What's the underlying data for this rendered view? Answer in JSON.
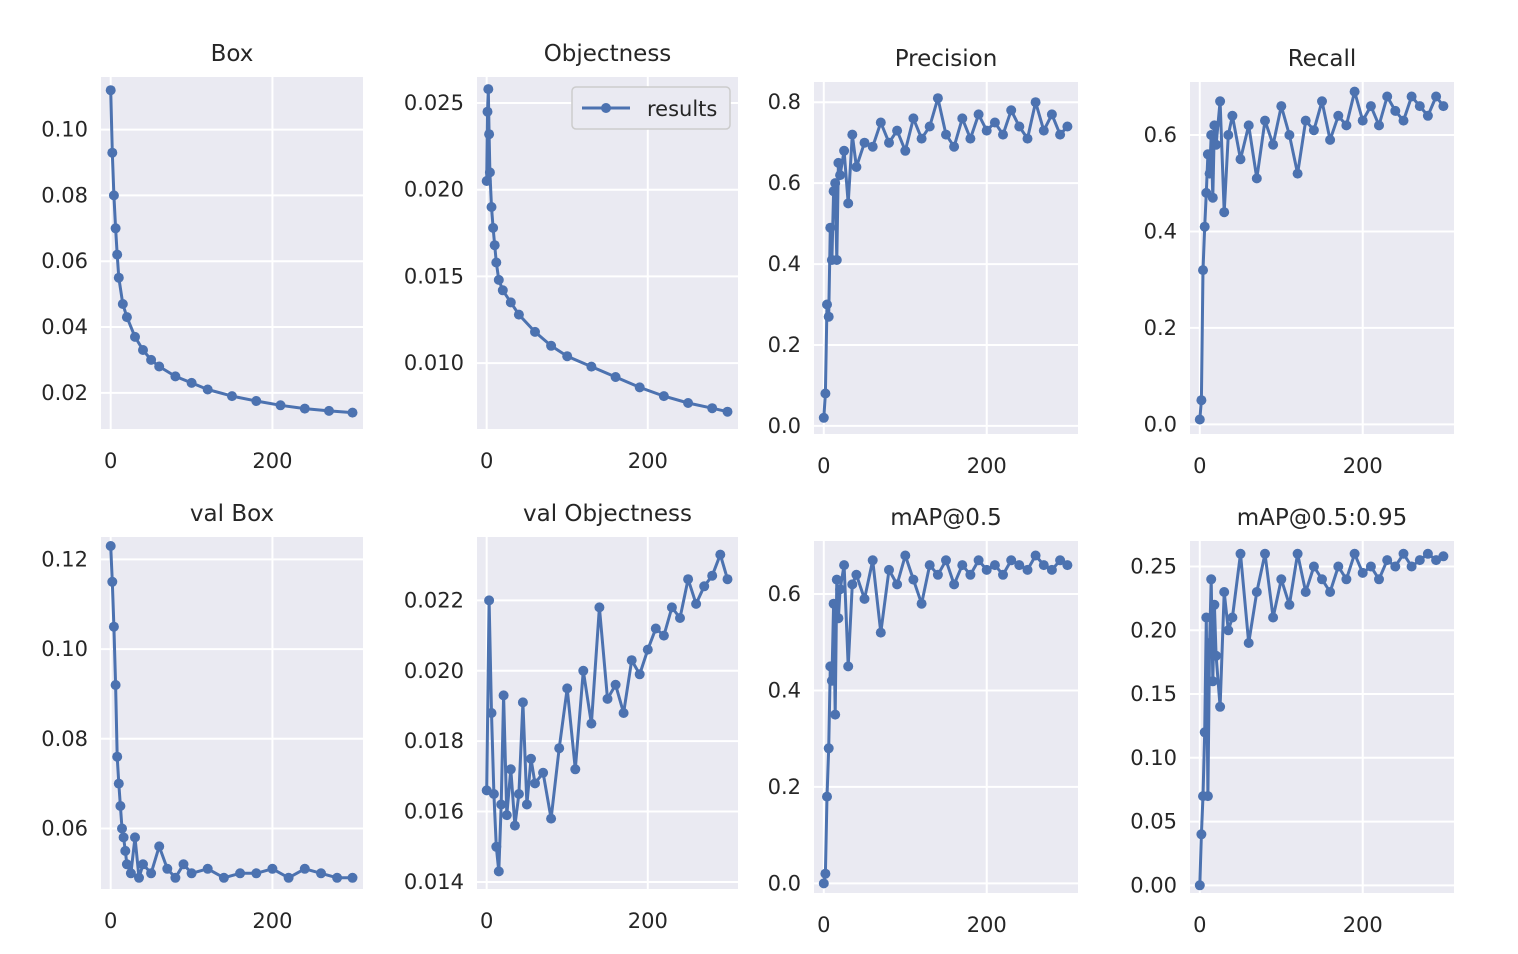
{
  "legend": {
    "label": "results"
  },
  "colors": {
    "series": "#4c72b0",
    "plot_bg": "#eaeaf2",
    "grid": "#ffffff"
  },
  "chart_data": [
    {
      "type": "line",
      "title": "Box",
      "xlabel": "",
      "ylabel": "",
      "xlim": [
        -12,
        312
      ],
      "ylim": [
        0.009,
        0.116
      ],
      "xticks": [
        0,
        200
      ],
      "xtick_labels": [
        "0",
        "200"
      ],
      "yticks": [
        0.02,
        0.04,
        0.06,
        0.08,
        0.1
      ],
      "ytick_labels": [
        "0.02",
        "0.04",
        "0.06",
        "0.08",
        "0.10"
      ],
      "x": [
        0,
        2,
        4,
        6,
        8,
        10,
        15,
        20,
        30,
        40,
        50,
        60,
        80,
        100,
        120,
        150,
        180,
        210,
        240,
        270,
        299
      ],
      "values": [
        0.112,
        0.093,
        0.08,
        0.07,
        0.062,
        0.055,
        0.047,
        0.043,
        0.037,
        0.033,
        0.03,
        0.028,
        0.025,
        0.023,
        0.021,
        0.019,
        0.0175,
        0.0162,
        0.0152,
        0.0145,
        0.014
      ]
    },
    {
      "type": "line",
      "title": "Objectness",
      "xlabel": "",
      "ylabel": "",
      "xlim": [
        -12,
        312
      ],
      "ylim": [
        0.0062,
        0.0265
      ],
      "xticks": [
        0,
        200
      ],
      "xtick_labels": [
        "0",
        "200"
      ],
      "yticks": [
        0.01,
        0.015,
        0.02,
        0.025
      ],
      "ytick_labels": [
        "0.010",
        "0.015",
        "0.020",
        "0.025"
      ],
      "x": [
        0,
        1,
        2,
        3,
        4,
        6,
        8,
        10,
        12,
        15,
        20,
        30,
        40,
        60,
        80,
        100,
        130,
        160,
        190,
        220,
        250,
        280,
        299
      ],
      "values": [
        0.0205,
        0.0245,
        0.0258,
        0.0232,
        0.021,
        0.019,
        0.0178,
        0.0168,
        0.0158,
        0.0148,
        0.0142,
        0.0135,
        0.0128,
        0.0118,
        0.011,
        0.0104,
        0.0098,
        0.0092,
        0.0086,
        0.0081,
        0.0077,
        0.0074,
        0.0072
      ],
      "legend": "top-right"
    },
    {
      "type": "line",
      "title": "Precision",
      "xlabel": "",
      "ylabel": "",
      "xlim": [
        -12,
        312
      ],
      "ylim": [
        -0.02,
        0.85
      ],
      "xticks": [
        0,
        200
      ],
      "xtick_labels": [
        "0",
        "200"
      ],
      "yticks": [
        0.0,
        0.2,
        0.4,
        0.6,
        0.8
      ],
      "ytick_labels": [
        "0.0",
        "0.2",
        "0.4",
        "0.6",
        "0.8"
      ],
      "x": [
        0,
        2,
        4,
        6,
        8,
        10,
        12,
        14,
        16,
        18,
        20,
        25,
        30,
        35,
        40,
        50,
        60,
        70,
        80,
        90,
        100,
        110,
        120,
        130,
        140,
        150,
        160,
        170,
        180,
        190,
        200,
        210,
        220,
        230,
        240,
        250,
        260,
        270,
        280,
        290,
        299
      ],
      "values": [
        0.02,
        0.08,
        0.3,
        0.27,
        0.49,
        0.41,
        0.58,
        0.6,
        0.41,
        0.65,
        0.62,
        0.68,
        0.55,
        0.72,
        0.64,
        0.7,
        0.69,
        0.75,
        0.7,
        0.73,
        0.68,
        0.76,
        0.71,
        0.74,
        0.81,
        0.72,
        0.69,
        0.76,
        0.71,
        0.77,
        0.73,
        0.75,
        0.72,
        0.78,
        0.74,
        0.71,
        0.8,
        0.73,
        0.77,
        0.72,
        0.74
      ]
    },
    {
      "type": "line",
      "title": "Recall",
      "xlabel": "",
      "ylabel": "",
      "xlim": [
        -12,
        312
      ],
      "ylim": [
        -0.02,
        0.71
      ],
      "xticks": [
        0,
        200
      ],
      "xtick_labels": [
        "0",
        "200"
      ],
      "yticks": [
        0.0,
        0.2,
        0.4,
        0.6
      ],
      "ytick_labels": [
        "0.0",
        "0.2",
        "0.4",
        "0.6"
      ],
      "x": [
        0,
        2,
        4,
        6,
        8,
        10,
        12,
        14,
        16,
        18,
        20,
        25,
        30,
        35,
        40,
        50,
        60,
        70,
        80,
        90,
        100,
        110,
        120,
        130,
        140,
        150,
        160,
        170,
        180,
        190,
        200,
        210,
        220,
        230,
        240,
        250,
        260,
        270,
        280,
        290,
        299
      ],
      "values": [
        0.01,
        0.05,
        0.32,
        0.41,
        0.48,
        0.56,
        0.52,
        0.6,
        0.47,
        0.62,
        0.58,
        0.67,
        0.44,
        0.6,
        0.64,
        0.55,
        0.62,
        0.51,
        0.63,
        0.58,
        0.66,
        0.6,
        0.52,
        0.63,
        0.61,
        0.67,
        0.59,
        0.64,
        0.62,
        0.69,
        0.63,
        0.66,
        0.62,
        0.68,
        0.65,
        0.63,
        0.68,
        0.66,
        0.64,
        0.68,
        0.66
      ]
    },
    {
      "type": "line",
      "title": "val Box",
      "xlabel": "",
      "ylabel": "",
      "xlim": [
        -12,
        312
      ],
      "ylim": [
        0.0465,
        0.125
      ],
      "xticks": [
        0,
        200
      ],
      "xtick_labels": [
        "0",
        "200"
      ],
      "yticks": [
        0.06,
        0.08,
        0.1,
        0.12
      ],
      "ytick_labels": [
        "0.06",
        "0.08",
        "0.10",
        "0.12"
      ],
      "x": [
        0,
        2,
        4,
        6,
        8,
        10,
        12,
        14,
        16,
        18,
        20,
        25,
        30,
        35,
        40,
        50,
        60,
        70,
        80,
        90,
        100,
        120,
        140,
        160,
        180,
        200,
        220,
        240,
        260,
        280,
        299
      ],
      "values": [
        0.123,
        0.115,
        0.105,
        0.092,
        0.076,
        0.07,
        0.065,
        0.06,
        0.058,
        0.055,
        0.052,
        0.05,
        0.058,
        0.049,
        0.052,
        0.05,
        0.056,
        0.051,
        0.049,
        0.052,
        0.05,
        0.051,
        0.049,
        0.05,
        0.05,
        0.051,
        0.049,
        0.051,
        0.05,
        0.049,
        0.049
      ]
    },
    {
      "type": "line",
      "title": "val Objectness",
      "xlabel": "",
      "ylabel": "",
      "xlim": [
        -12,
        312
      ],
      "ylim": [
        0.0138,
        0.0238
      ],
      "xticks": [
        0,
        200
      ],
      "xtick_labels": [
        "0",
        "200"
      ],
      "yticks": [
        0.014,
        0.016,
        0.018,
        0.02,
        0.022
      ],
      "ytick_labels": [
        "0.014",
        "0.016",
        "0.018",
        "0.020",
        "0.022"
      ],
      "x": [
        0,
        3,
        6,
        9,
        12,
        15,
        18,
        21,
        25,
        30,
        35,
        40,
        45,
        50,
        55,
        60,
        70,
        80,
        90,
        100,
        110,
        120,
        130,
        140,
        150,
        160,
        170,
        180,
        190,
        200,
        210,
        220,
        230,
        240,
        250,
        260,
        270,
        280,
        290,
        299
      ],
      "values": [
        0.0166,
        0.022,
        0.0188,
        0.0165,
        0.015,
        0.0143,
        0.0162,
        0.0193,
        0.0159,
        0.0172,
        0.0156,
        0.0165,
        0.0191,
        0.0162,
        0.0175,
        0.0168,
        0.0171,
        0.0158,
        0.0178,
        0.0195,
        0.0172,
        0.02,
        0.0185,
        0.0218,
        0.0192,
        0.0196,
        0.0188,
        0.0203,
        0.0199,
        0.0206,
        0.0212,
        0.021,
        0.0218,
        0.0215,
        0.0226,
        0.0219,
        0.0224,
        0.0227,
        0.0233,
        0.0226
      ]
    },
    {
      "type": "line",
      "title": "mAP@0.5",
      "xlabel": "",
      "ylabel": "",
      "xlim": [
        -12,
        312
      ],
      "ylim": [
        -0.02,
        0.71
      ],
      "xticks": [
        0,
        200
      ],
      "xtick_labels": [
        "0",
        "200"
      ],
      "yticks": [
        0.0,
        0.2,
        0.4,
        0.6
      ],
      "ytick_labels": [
        "0.0",
        "0.2",
        "0.4",
        "0.6"
      ],
      "x": [
        0,
        2,
        4,
        6,
        8,
        10,
        12,
        14,
        16,
        18,
        20,
        25,
        30,
        35,
        40,
        50,
        60,
        70,
        80,
        90,
        100,
        110,
        120,
        130,
        140,
        150,
        160,
        170,
        180,
        190,
        200,
        210,
        220,
        230,
        240,
        250,
        260,
        270,
        280,
        290,
        299
      ],
      "values": [
        0.0,
        0.02,
        0.18,
        0.28,
        0.45,
        0.42,
        0.58,
        0.35,
        0.63,
        0.55,
        0.61,
        0.66,
        0.45,
        0.62,
        0.64,
        0.59,
        0.67,
        0.52,
        0.65,
        0.62,
        0.68,
        0.63,
        0.58,
        0.66,
        0.64,
        0.67,
        0.62,
        0.66,
        0.64,
        0.67,
        0.65,
        0.66,
        0.64,
        0.67,
        0.66,
        0.65,
        0.68,
        0.66,
        0.65,
        0.67,
        0.66
      ]
    },
    {
      "type": "line",
      "title": "mAP@0.5:0.95",
      "xlabel": "",
      "ylabel": "",
      "xlim": [
        -12,
        312
      ],
      "ylim": [
        -0.006,
        0.27
      ],
      "xticks": [
        0,
        200
      ],
      "xtick_labels": [
        "0",
        "200"
      ],
      "yticks": [
        0.0,
        0.05,
        0.1,
        0.15,
        0.2,
        0.25
      ],
      "ytick_labels": [
        "0.00",
        "0.05",
        "0.10",
        "0.15",
        "0.20",
        "0.25"
      ],
      "x": [
        0,
        2,
        4,
        6,
        8,
        10,
        12,
        14,
        16,
        18,
        20,
        25,
        30,
        35,
        40,
        50,
        60,
        70,
        80,
        90,
        100,
        110,
        120,
        130,
        140,
        150,
        160,
        170,
        180,
        190,
        200,
        210,
        220,
        230,
        240,
        250,
        260,
        270,
        280,
        290,
        299
      ],
      "values": [
        0.0,
        0.04,
        0.07,
        0.12,
        0.21,
        0.07,
        0.19,
        0.24,
        0.16,
        0.22,
        0.18,
        0.14,
        0.23,
        0.2,
        0.21,
        0.26,
        0.19,
        0.23,
        0.26,
        0.21,
        0.24,
        0.22,
        0.26,
        0.23,
        0.25,
        0.24,
        0.23,
        0.25,
        0.24,
        0.26,
        0.245,
        0.25,
        0.24,
        0.255,
        0.25,
        0.26,
        0.25,
        0.255,
        0.26,
        0.255,
        0.258
      ]
    }
  ]
}
